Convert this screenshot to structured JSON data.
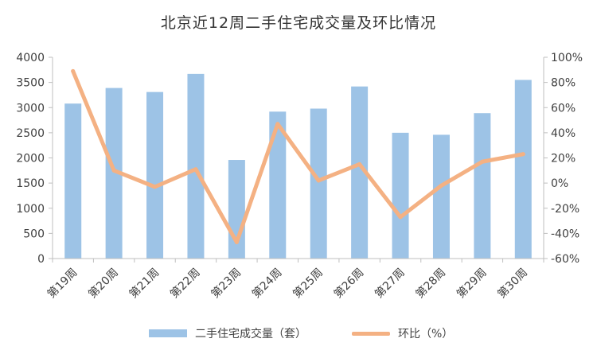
{
  "chart_data": {
    "type": "bar",
    "title": "北京近12周二手住宅成交量及环比情况",
    "categories": [
      "第19周",
      "第20周",
      "第21周",
      "第22周",
      "第23周",
      "第24周",
      "第25周",
      "第26周",
      "第27周",
      "第28周",
      "第29周",
      "第30周"
    ],
    "series": [
      {
        "name": "二手住宅成交量（套）",
        "type": "bar",
        "axis": "left",
        "color": "#9dc3e6",
        "values": [
          3080,
          3390,
          3310,
          3670,
          1960,
          2920,
          2980,
          3420,
          2500,
          2460,
          2890,
          3550
        ]
      },
      {
        "name": "环比（%）",
        "type": "line",
        "axis": "right",
        "color": "#f4b183",
        "values": [
          89,
          10,
          -3,
          11,
          -47,
          47,
          2,
          15,
          -27,
          -2,
          17,
          23
        ]
      }
    ],
    "y_left": {
      "min": 0,
      "max": 4000,
      "step": 500,
      "tick_labels": [
        "0",
        "500",
        "1000",
        "1500",
        "2000",
        "2500",
        "3000",
        "3500",
        "4000"
      ]
    },
    "y_right": {
      "min": -60,
      "max": 100,
      "step": 20,
      "tick_labels": [
        "-60%",
        "-40%",
        "-20%",
        "0%",
        "20%",
        "40%",
        "60%",
        "80%",
        "100%"
      ]
    },
    "grid": false,
    "legend_position": "bottom"
  }
}
